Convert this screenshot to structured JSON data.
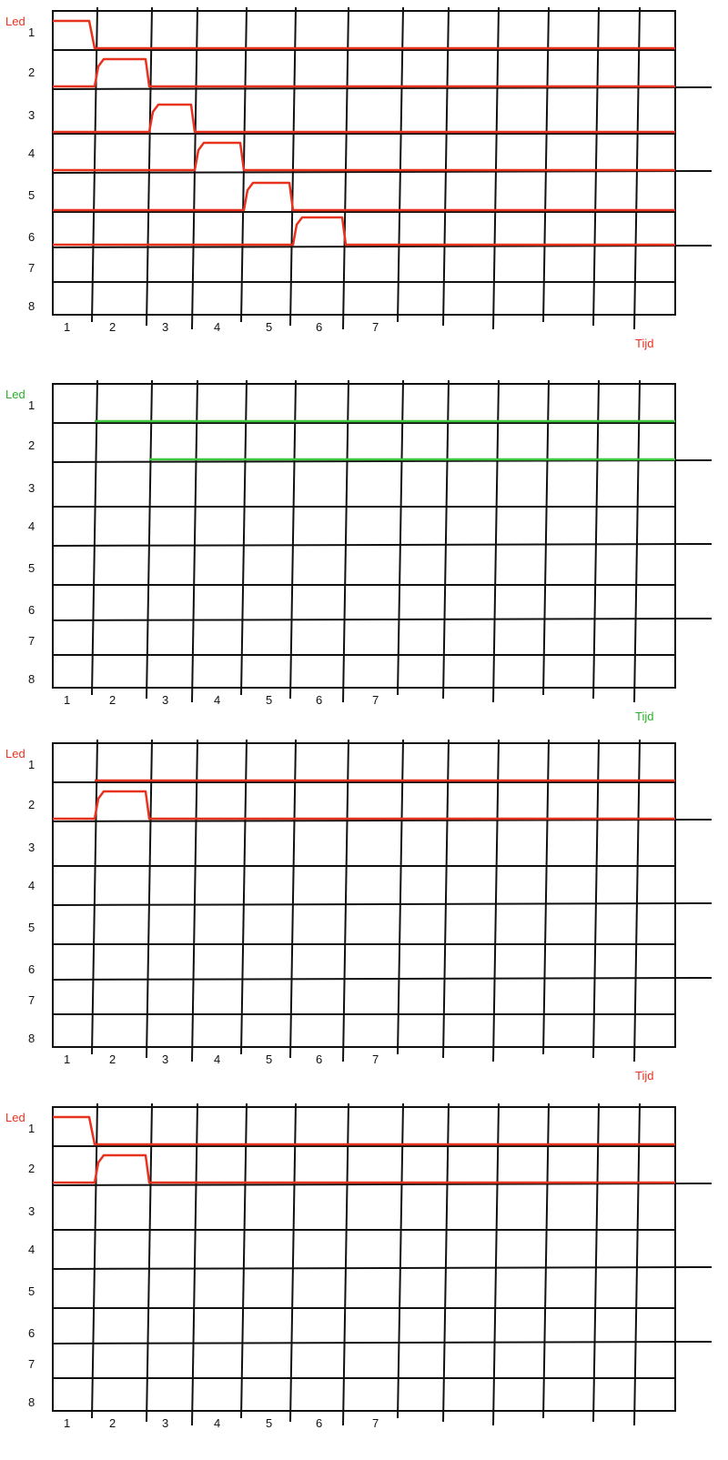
{
  "diagrams": [
    {
      "title": "Led",
      "time_label": "Tijd",
      "label_color": "#e8321e",
      "signal_color": "#e8321e",
      "row_labels": [
        "1",
        "2",
        "3",
        "4",
        "5",
        "6",
        "7",
        "8"
      ],
      "column_labels": [
        "1",
        "2",
        "3",
        "4",
        "5",
        "6",
        "7"
      ],
      "signals": [
        {
          "led": 1,
          "high": [
            [
              0,
              1
            ]
          ],
          "then_flat": true
        },
        {
          "led": 2,
          "high": [
            [
              1,
              2
            ]
          ],
          "then_flat": true
        },
        {
          "led": 3,
          "high": [
            [
              2,
              3
            ]
          ],
          "then_flat": true
        },
        {
          "led": 4,
          "high": [
            [
              3,
              4
            ]
          ],
          "then_flat": true
        },
        {
          "led": 5,
          "high": [
            [
              4,
              5
            ]
          ],
          "then_flat": true
        },
        {
          "led": 6,
          "high": [
            [
              5,
              6
            ]
          ],
          "then_flat": true
        }
      ]
    },
    {
      "title": "Led",
      "time_label": "Tijd",
      "label_color": "#27b327",
      "signal_color": "#3cc83c",
      "row_labels": [
        "1",
        "2",
        "3",
        "4",
        "5",
        "6",
        "7",
        "8"
      ],
      "column_labels": [
        "1",
        "2",
        "3",
        "4",
        "5",
        "6",
        "7"
      ],
      "signals": [
        {
          "led": 1,
          "high": [],
          "baseline_from": 1
        },
        {
          "led": 2,
          "high": [],
          "baseline_from": 2
        }
      ]
    },
    {
      "title": "Led",
      "time_label": "Tijd",
      "label_color": "#e8321e",
      "signal_color": "#e8321e",
      "row_labels": [
        "1",
        "2",
        "3",
        "4",
        "5",
        "6",
        "7",
        "8"
      ],
      "column_labels": [
        "1",
        "2",
        "3",
        "4",
        "5",
        "6",
        "7"
      ],
      "signals": [
        {
          "led": 1,
          "high": [],
          "baseline_from": 1
        },
        {
          "led": 2,
          "high": [
            [
              1,
              2
            ]
          ],
          "then_flat": true
        }
      ]
    },
    {
      "title": "Led",
      "time_label": "",
      "label_color": "#e8321e",
      "signal_color": "#e8321e",
      "row_labels": [
        "1",
        "2",
        "3",
        "4",
        "5",
        "6",
        "7",
        "8"
      ],
      "column_labels": [
        "1",
        "2",
        "3",
        "4",
        "5",
        "6",
        "7"
      ],
      "signals": [
        {
          "led": 1,
          "high": [
            [
              0,
              1
            ]
          ],
          "then_flat": true
        },
        {
          "led": 2,
          "high": [
            [
              1,
              2
            ]
          ],
          "then_flat": true
        }
      ]
    }
  ]
}
